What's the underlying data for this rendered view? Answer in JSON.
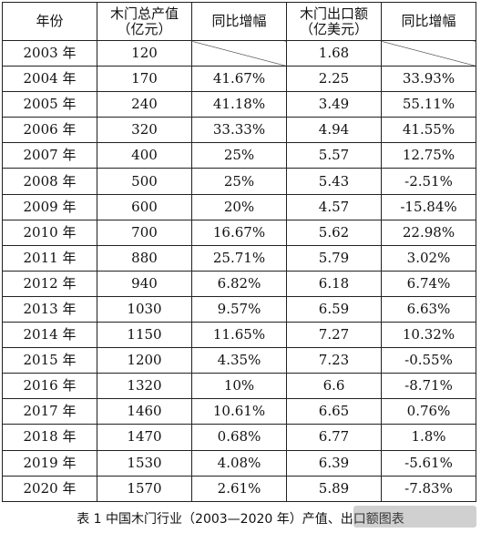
{
  "table": {
    "headers": [
      "年份",
      "木门总产值（亿元）",
      "同比增幅",
      "木门出口额（亿美元）",
      "同比增幅"
    ],
    "rows": [
      [
        "2003 年",
        "120",
        "",
        "1.68",
        ""
      ],
      [
        "2004 年",
        "170",
        "41.67%",
        "2.25",
        "33.93%"
      ],
      [
        "2005 年",
        "240",
        "41.18%",
        "3.49",
        "55.11%"
      ],
      [
        "2006 年",
        "320",
        "33.33%",
        "4.94",
        "41.55%"
      ],
      [
        "2007 年",
        "400",
        "25%",
        "5.57",
        "12.75%"
      ],
      [
        "2008 年",
        "500",
        "25%",
        "5.43",
        "-2.51%"
      ],
      [
        "2009 年",
        "600",
        "20%",
        "4.57",
        "-15.84%"
      ],
      [
        "2010 年",
        "700",
        "16.67%",
        "5.62",
        "22.98%"
      ],
      [
        "2011 年",
        "880",
        "25.71%",
        "5.79",
        "3.02%"
      ],
      [
        "2012 年",
        "940",
        "6.82%",
        "6.18",
        "6.74%"
      ],
      [
        "2013 年",
        "1030",
        "9.57%",
        "6.59",
        "6.63%"
      ],
      [
        "2014 年",
        "1150",
        "11.65%",
        "7.27",
        "10.32%"
      ],
      [
        "2015 年",
        "1200",
        "4.35%",
        "7.23",
        "-0.55%"
      ],
      [
        "2016 年",
        "1320",
        "10%",
        "6.6",
        "-8.71%"
      ],
      [
        "2017 年",
        "1460",
        "10.61%",
        "6.65",
        "0.76%"
      ],
      [
        "2018 年",
        "1470",
        "0.68%",
        "6.77",
        "1.8%"
      ],
      [
        "2019 年",
        "1530",
        "4.08%",
        "6.39",
        "-5.61%"
      ],
      [
        "2020 年",
        "1570",
        "2.61%",
        "5.89",
        "-7.83%"
      ]
    ]
  },
  "caption": "表 1  中国木门行业（2003—2020 年）产值、出口额图表"
}
